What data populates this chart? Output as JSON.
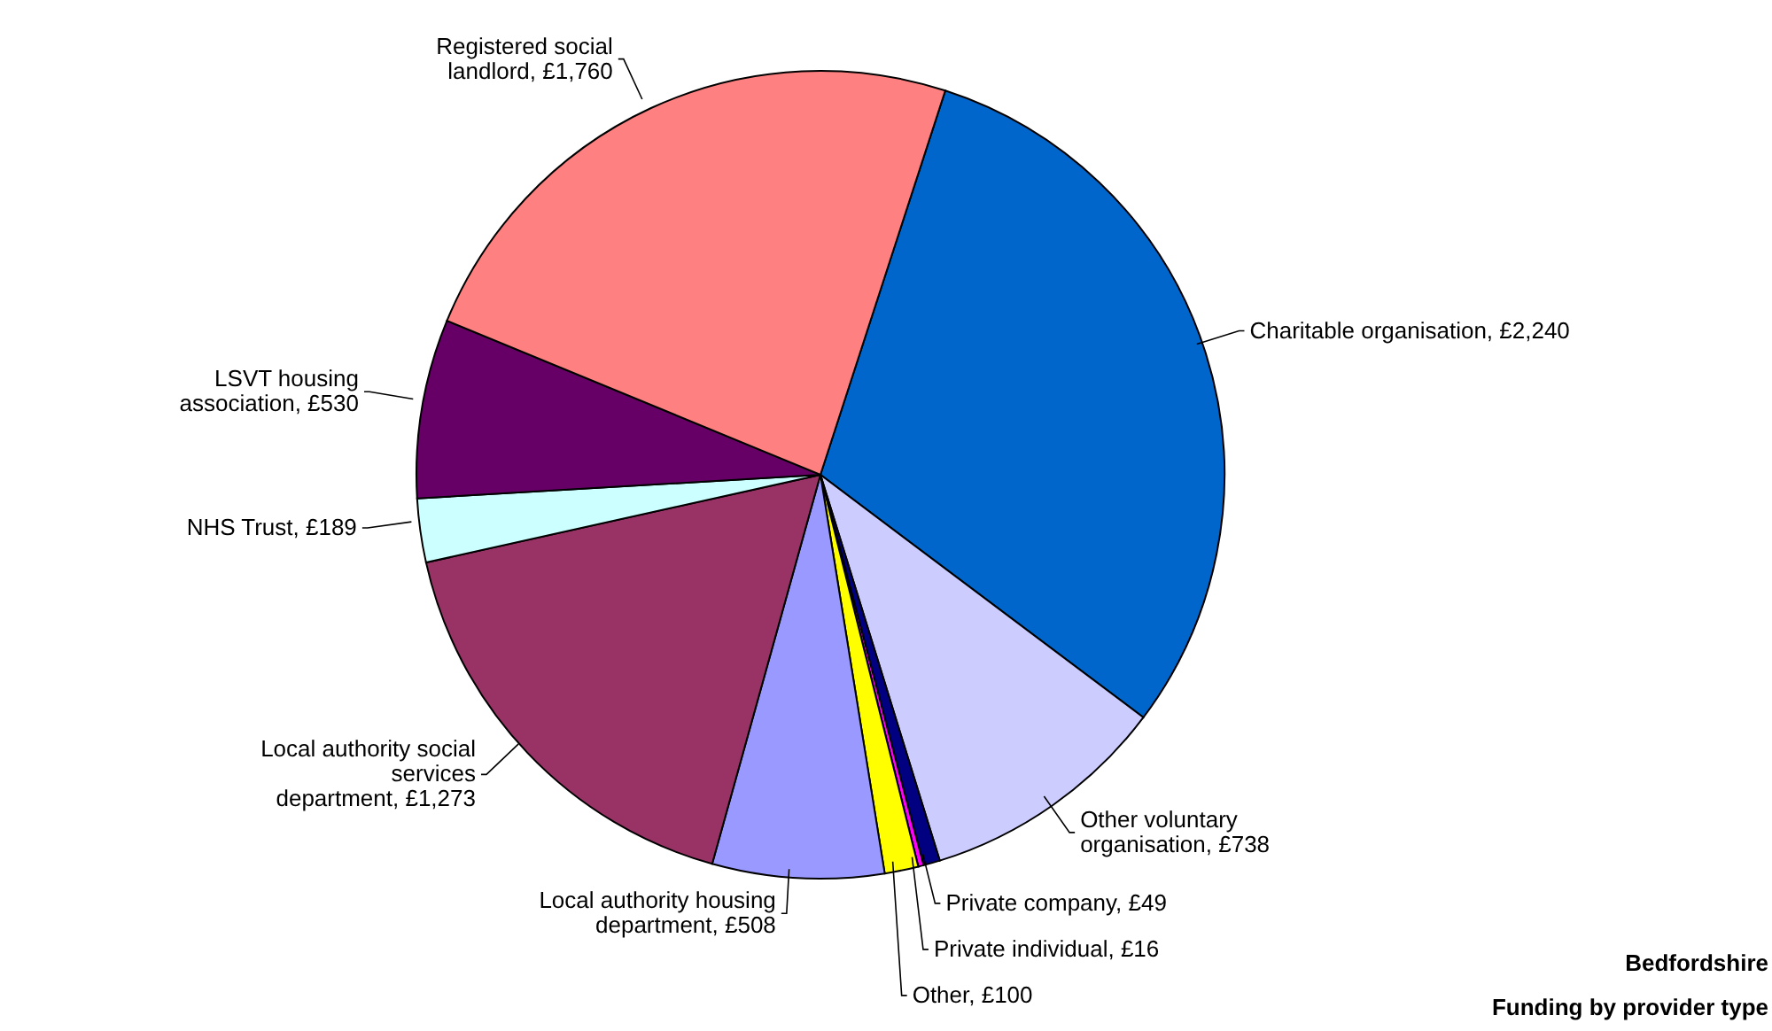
{
  "chart_data": {
    "type": "pie",
    "title": "Bedfordshire",
    "subtitle": "Funding by provider type",
    "categories": [
      "Charitable organisation",
      "Other voluntary organisation",
      "Private company",
      "Private individual",
      "Other",
      "Local authority housing department",
      "Local authority social services department",
      "NHS Trust",
      "LSVT housing association",
      "Registered social landlord"
    ],
    "values": [
      2240,
      738,
      49,
      16,
      100,
      508,
      1273,
      189,
      530,
      1760
    ],
    "value_labels": [
      "£2,240",
      "£738",
      "£49",
      "£16",
      "£100",
      "£508",
      "£1,273",
      "£189",
      "£530",
      "£1,760"
    ],
    "colors": [
      "#0066cc",
      "#ccccff",
      "#000080",
      "#ff00ff",
      "#ffff00",
      "#9999ff",
      "#993366",
      "#ccffff",
      "#660066",
      "#ff8080"
    ],
    "legend": false
  }
}
